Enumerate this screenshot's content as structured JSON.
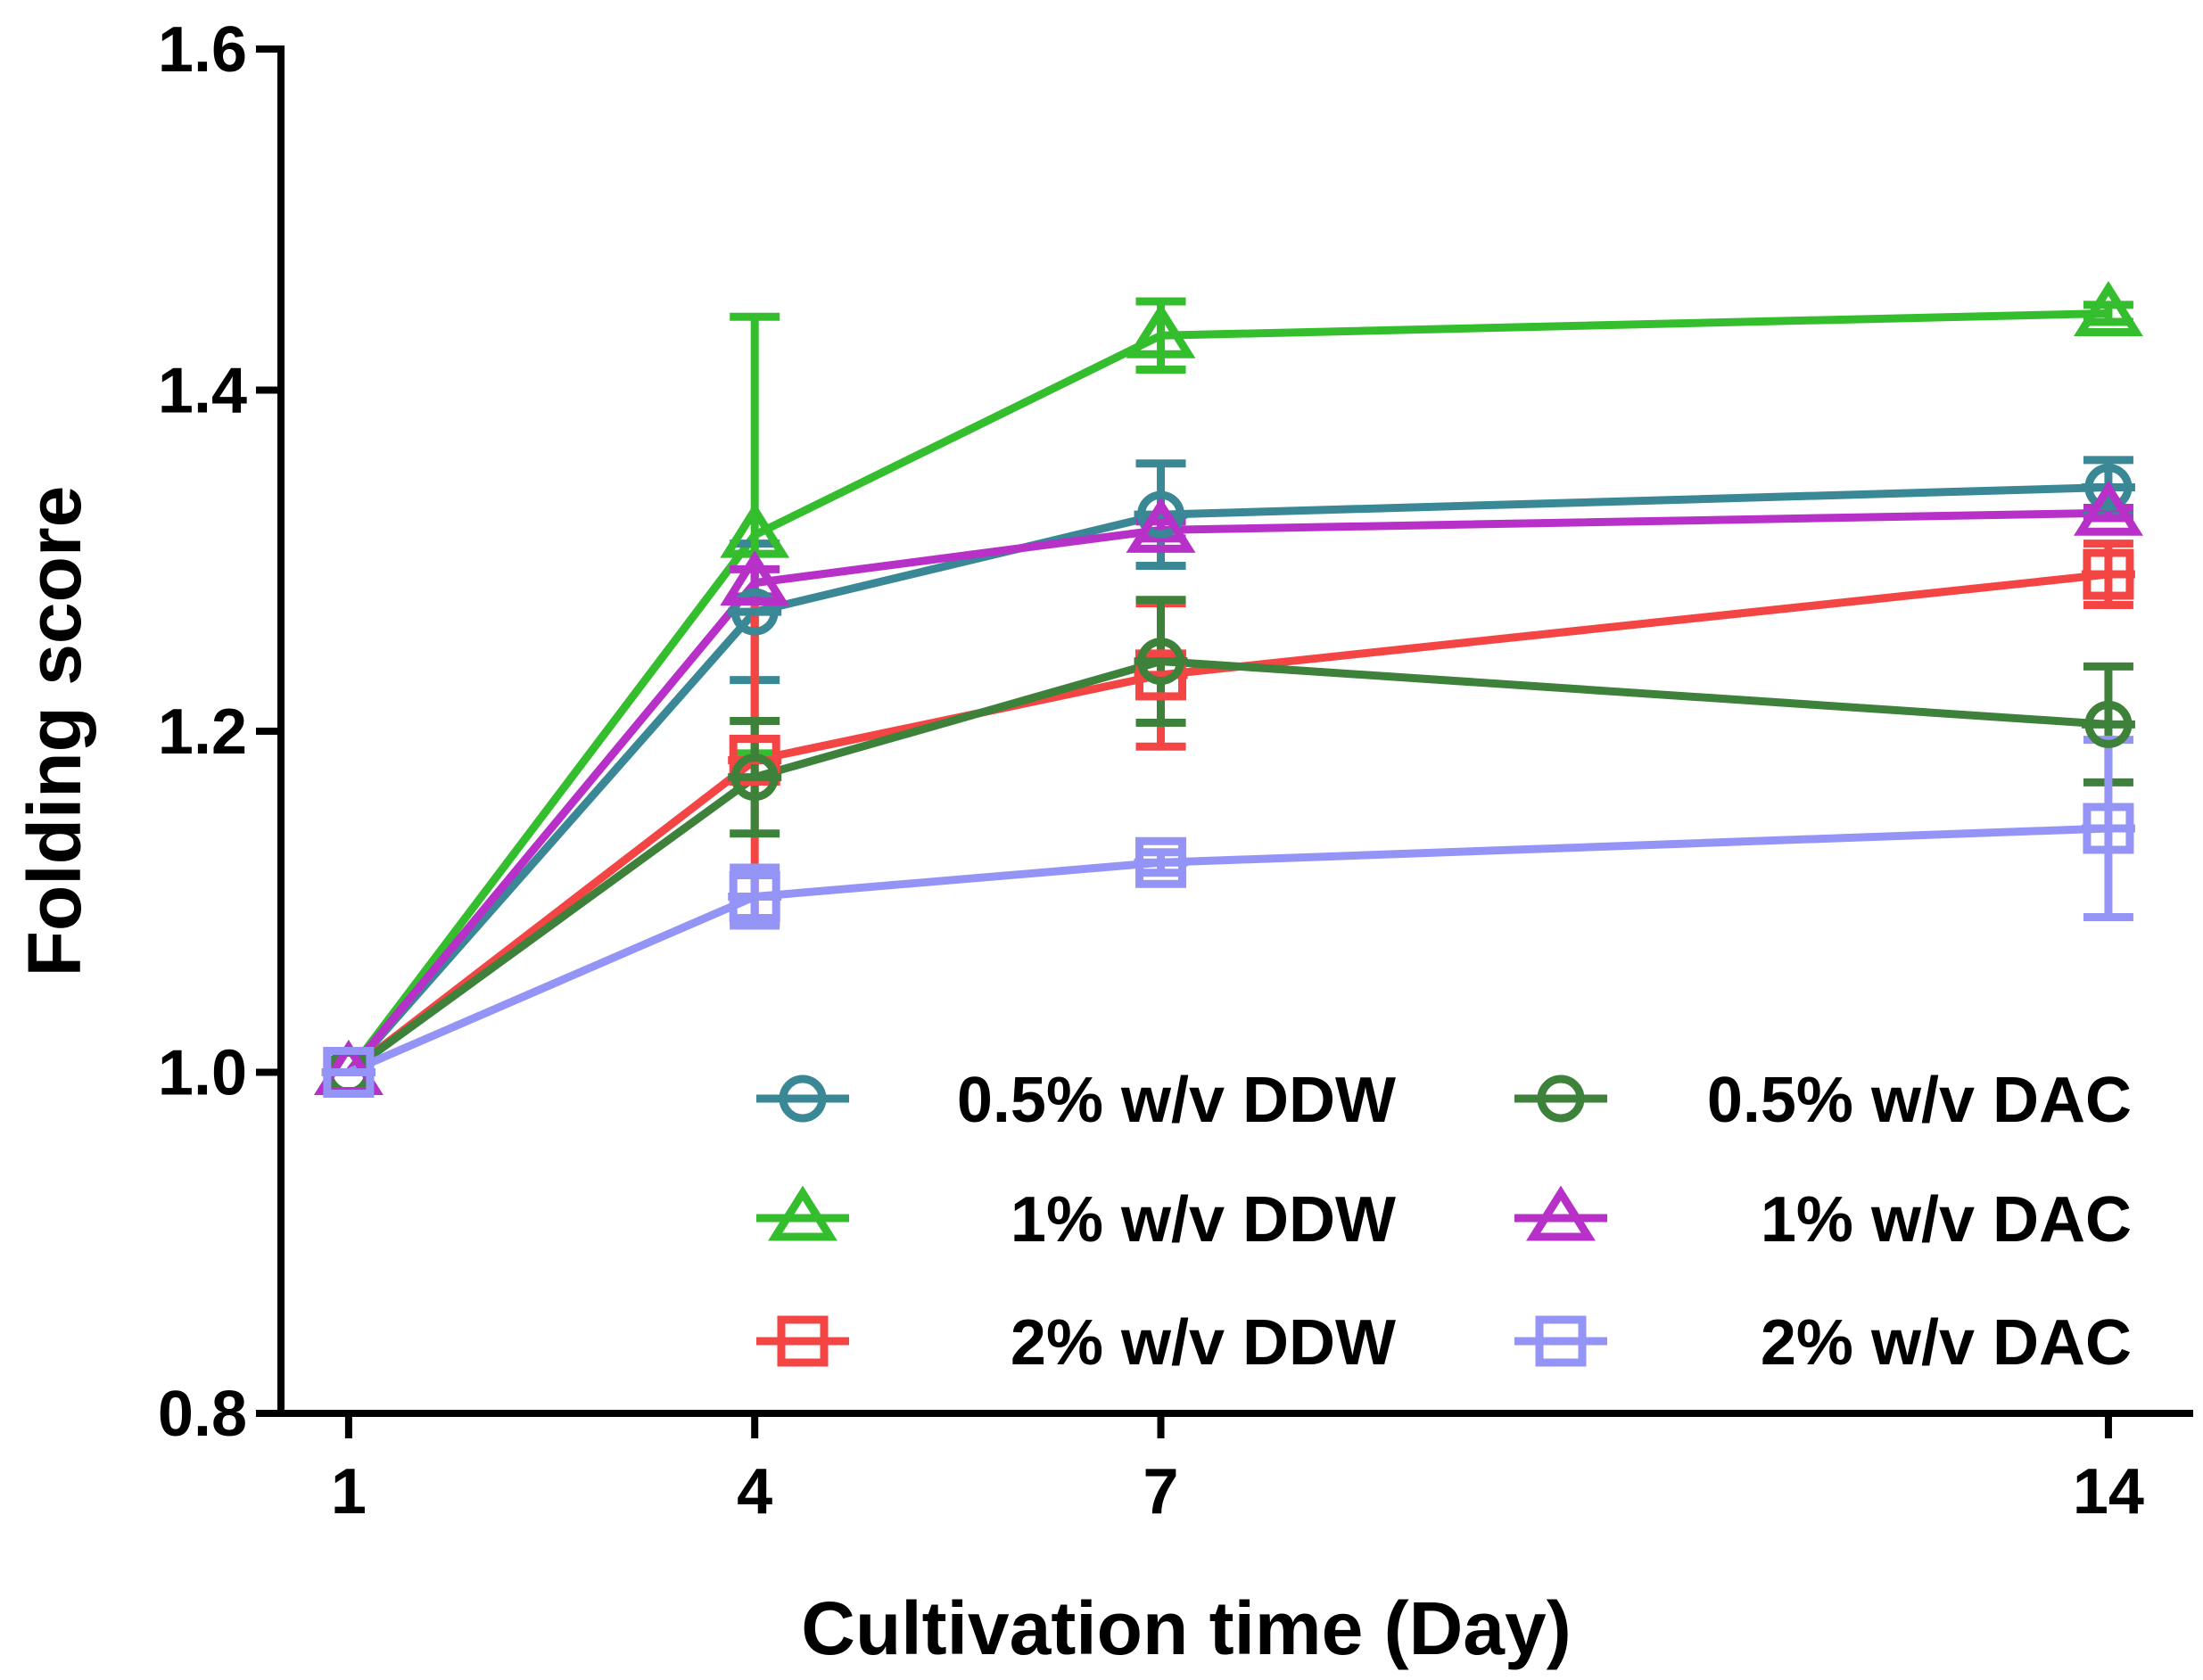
{
  "chart_data": {
    "type": "line",
    "title": "",
    "xlabel": "Cultivation time (Day)",
    "ylabel": "Folding score",
    "x": [
      1,
      4,
      7,
      14
    ],
    "xticks": [
      "1",
      "4",
      "7",
      "14"
    ],
    "xlim": [
      0.5,
      14.6
    ],
    "ylim": [
      0.8,
      1.6
    ],
    "yticks": [
      "0.8",
      "1.0",
      "1.2",
      "1.4",
      "1.6"
    ],
    "grid": false,
    "legend_position": "bottom-right",
    "series": [
      {
        "name": "0.5% w/v DDW",
        "legend_label": "0.5% w/v DDW",
        "marker": "circle",
        "color": "#3A8796",
        "values": [
          1.0,
          1.27,
          1.327,
          1.343
        ],
        "errors": [
          0,
          0.04,
          0.03,
          0.016
        ]
      },
      {
        "name": "1% w/v DDW",
        "legend_label": "1% w/v DDW",
        "marker": "triangle",
        "color": "#34BE2E",
        "values": [
          1.0,
          1.315,
          1.432,
          1.445
        ],
        "errors": [
          0,
          0.128,
          0.02,
          0.005
        ]
      },
      {
        "name": "2% w/v DDW",
        "legend_label": "2% w/v DDW",
        "marker": "square",
        "color": "#F44545",
        "values": [
          1.0,
          1.183,
          1.233,
          1.292
        ],
        "errors": [
          0,
          0.095,
          0.042,
          0.018
        ]
      },
      {
        "name": "0.5% w/v DAC",
        "legend_label": "0.5% w/v DAC",
        "marker": "circle",
        "color": "#3D813B",
        "values": [
          1.0,
          1.173,
          1.241,
          1.204
        ],
        "errors": [
          0,
          0.033,
          0.036,
          0.034
        ]
      },
      {
        "name": "1% w/v DAC",
        "legend_label": "1% w/v DAC",
        "marker": "triangle",
        "color": "#B730C8",
        "values": [
          1.0,
          1.287,
          1.318,
          1.328
        ],
        "errors": [
          0,
          0.008,
          0.005,
          0.003
        ]
      },
      {
        "name": "2% w/v DAC",
        "legend_label": "2% w/v DAC",
        "marker": "square",
        "color": "#9494F6",
        "values": [
          1.0,
          1.103,
          1.123,
          1.143
        ],
        "errors": [
          0,
          0.017,
          0.006,
          0.052
        ]
      }
    ]
  }
}
